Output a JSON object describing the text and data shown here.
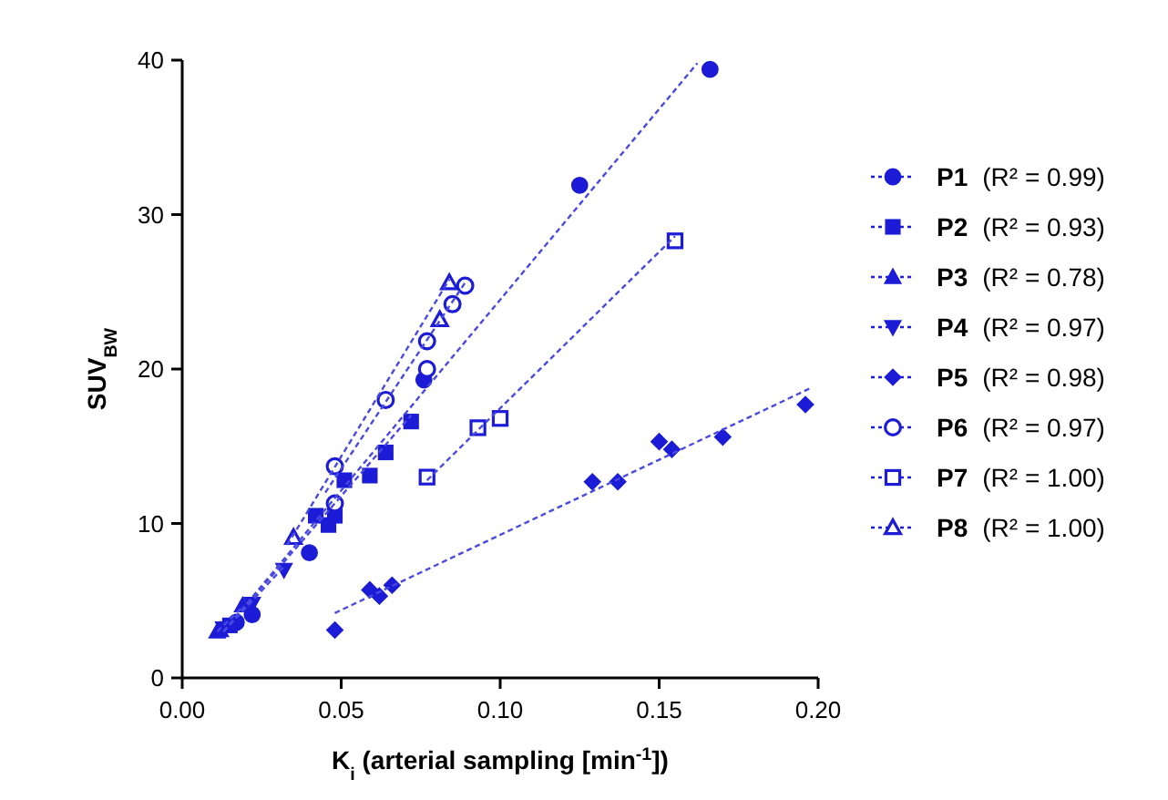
{
  "chart_data": {
    "type": "scatter",
    "xlabel": "K$_{i}$ (arterial sampling [min$^{-1}$])",
    "ylabel": "SUV$_{BW}$",
    "xlim": [
      0,
      0.2
    ],
    "xticks": [
      {
        "value": 0,
        "label": "0.00"
      },
      {
        "value": 0.05,
        "label": "0.05"
      },
      {
        "value": 0.1,
        "label": "0.10"
      },
      {
        "value": 0.15,
        "label": "0.15"
      },
      {
        "value": 0.2,
        "label": "0.20"
      }
    ],
    "ylim": [
      0,
      40
    ],
    "yticks": [
      0,
      10,
      20,
      30,
      40
    ],
    "grid": false,
    "legend": "right",
    "series": [
      {
        "name": "P1 (R² = 0.99)",
        "marker": "circle",
        "color": "#1c1cd6",
        "x": [
          0.017,
          0.022,
          0.04,
          0.076,
          0.125,
          0.166
        ],
        "values": [
          3.6,
          4.1,
          8.1,
          19.3,
          31.9,
          39.4
        ]
      },
      {
        "name": "P2 (R² = 0.93)",
        "marker": "square",
        "color": "#1c1cd6",
        "x": [
          0.015,
          0.042,
          0.046,
          0.048,
          0.051,
          0.059,
          0.064,
          0.072
        ],
        "values": [
          3.4,
          10.5,
          9.9,
          10.5,
          12.8,
          13.1,
          14.6,
          16.6
        ]
      },
      {
        "name": "P3 (R² = 0.78)",
        "marker": "triangle",
        "color": "#1c1cd6",
        "x": [
          0.011,
          0.012,
          0.019
        ],
        "values": [
          3.0,
          3.1,
          4.7
        ]
      },
      {
        "name": "P4 (R² = 0.97)",
        "marker": "triangle-down",
        "color": "#1c1cd6",
        "x": [
          0.013,
          0.022,
          0.032
        ],
        "values": [
          3.2,
          4.8,
          7.0
        ]
      },
      {
        "name": "P5 (R² = 0.98)",
        "marker": "diamond",
        "color": "#1c1cd6",
        "x": [
          0.048,
          0.059,
          0.062,
          0.066,
          0.129,
          0.137,
          0.15,
          0.154,
          0.17,
          0.196
        ],
        "values": [
          3.1,
          5.7,
          5.3,
          6.0,
          12.7,
          12.7,
          15.3,
          14.8,
          15.6,
          17.7
        ]
      },
      {
        "name": "P6 (R² = 0.97)",
        "marker": "circle-open",
        "color": "#1c1cd6",
        "x": [
          0.048,
          0.048,
          0.064,
          0.077,
          0.077,
          0.085,
          0.089
        ],
        "values": [
          11.3,
          13.7,
          18.0,
          20.0,
          21.8,
          24.2,
          25.4
        ]
      },
      {
        "name": "P7 (R² = 1.00)",
        "marker": "square-open",
        "color": "#1c1cd6",
        "x": [
          0.077,
          0.093,
          0.1,
          0.155
        ],
        "values": [
          13.0,
          16.2,
          16.8,
          28.3
        ]
      },
      {
        "name": "P8 (R² = 1.00)",
        "marker": "triangle-open",
        "color": "#1c1cd6",
        "x": [
          0.035,
          0.081,
          0.084
        ],
        "values": [
          9.1,
          23.2,
          25.6
        ]
      },
      {
        "type": "line",
        "line_style": "dashed",
        "marker": "none",
        "color": "#4a4ae0",
        "x": [
          0.013,
          0.162
        ],
        "values": [
          3.0,
          39.8
        ]
      },
      {
        "type": "line",
        "line_style": "dashed",
        "marker": "none",
        "color": "#4a4ae0",
        "x": [
          0.013,
          0.072
        ],
        "values": [
          3.0,
          17.0
        ]
      },
      {
        "type": "line",
        "line_style": "dashed",
        "marker": "none",
        "color": "#4a4ae0",
        "x": [
          0.011,
          0.019
        ],
        "values": [
          3.0,
          4.6
        ]
      },
      {
        "type": "line",
        "line_style": "dashed",
        "marker": "none",
        "color": "#4a4ae0",
        "x": [
          0.013,
          0.032
        ],
        "values": [
          3.0,
          7.2
        ]
      },
      {
        "type": "line",
        "line_style": "dashed",
        "marker": "none",
        "color": "#4a4ae0",
        "x": [
          0.048,
          0.198
        ],
        "values": [
          4.2,
          18.8
        ]
      },
      {
        "type": "line",
        "line_style": "dashed",
        "marker": "none",
        "color": "#4a4ae0",
        "x": [
          0.045,
          0.089
        ],
        "values": [
          12.0,
          25.6
        ]
      },
      {
        "type": "line",
        "line_style": "dashed",
        "marker": "none",
        "color": "#4a4ae0",
        "x": [
          0.077,
          0.155
        ],
        "values": [
          12.8,
          28.6
        ]
      },
      {
        "type": "line",
        "line_style": "dashed",
        "marker": "none",
        "color": "#4a4ae0",
        "x": [
          0.033,
          0.084
        ],
        "values": [
          8.6,
          25.8
        ]
      }
    ]
  }
}
